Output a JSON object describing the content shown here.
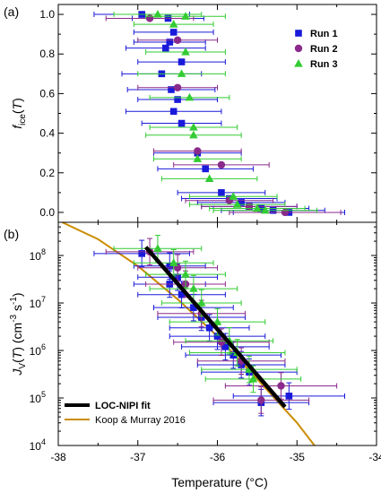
{
  "chart_data": {
    "type": "scatter",
    "xlabel": "Temperature (°C)",
    "xlim": [
      -38,
      -34
    ],
    "x_ticks": [
      -38,
      -37,
      -36,
      -35,
      -34
    ],
    "x_tick_labels": [
      "-38",
      "-37",
      "-36",
      "-35",
      "-34"
    ],
    "colors": {
      "run1": "#1a1adb",
      "run2": "#8b2a8b",
      "run3": "#33cc33",
      "fit": "#000000",
      "koop": "#cc8c00"
    },
    "panels": [
      {
        "panel_label": "(a)",
        "ylabel_main": "f",
        "ylabel_sub": "ice",
        "ylabel_tail": "(T)",
        "ylim": [
          -0.05,
          1.05
        ],
        "y_ticks": [
          0.0,
          0.2,
          0.4,
          0.6,
          0.8,
          1.0
        ],
        "y_tick_labels": [
          "0.0",
          "0.2",
          "0.4",
          "0.6",
          "0.8",
          "1.0"
        ],
        "legend": {
          "placement": "top-right",
          "entries": [
            "Run 1",
            "Run 2",
            "Run 3"
          ]
        },
        "series": [
          {
            "name": "Run 1",
            "marker": "square",
            "points": [
              {
                "x": -36.95,
                "y": 1.0,
                "xerr": 0.6
              },
              {
                "x": -36.62,
                "y": 0.98,
                "xerr": 0.45
              },
              {
                "x": -36.55,
                "y": 0.91,
                "xerr": 0.5
              },
              {
                "x": -36.6,
                "y": 0.86,
                "xerr": 0.45
              },
              {
                "x": -36.65,
                "y": 0.83,
                "xerr": 0.5
              },
              {
                "x": -36.45,
                "y": 0.76,
                "xerr": 0.55
              },
              {
                "x": -36.7,
                "y": 0.7,
                "xerr": 0.5
              },
              {
                "x": -36.58,
                "y": 0.62,
                "xerr": 0.55
              },
              {
                "x": -36.5,
                "y": 0.57,
                "xerr": 0.5
              },
              {
                "x": -36.55,
                "y": 0.51,
                "xerr": 0.6
              },
              {
                "x": -36.45,
                "y": 0.45,
                "xerr": 0.5
              },
              {
                "x": -36.25,
                "y": 0.3,
                "xerr": 0.55
              },
              {
                "x": -36.15,
                "y": 0.22,
                "xerr": 0.6
              },
              {
                "x": -35.95,
                "y": 0.1,
                "xerr": 0.55
              },
              {
                "x": -35.85,
                "y": 0.07,
                "xerr": 0.6
              },
              {
                "x": -35.7,
                "y": 0.05,
                "xerr": 0.55
              },
              {
                "x": -35.6,
                "y": 0.03,
                "xerr": 0.6
              },
              {
                "x": -35.45,
                "y": 0.02,
                "xerr": 0.6
              },
              {
                "x": -35.3,
                "y": 0.01,
                "xerr": 0.65
              },
              {
                "x": -35.1,
                "y": 0.0,
                "xerr": 0.7
              }
            ]
          },
          {
            "name": "Run 2",
            "marker": "circle",
            "points": [
              {
                "x": -36.85,
                "y": 0.98,
                "xerr": 0.55
              },
              {
                "x": -36.5,
                "y": 0.87,
                "xerr": 0.5
              },
              {
                "x": -36.5,
                "y": 0.63,
                "xerr": 0.5
              },
              {
                "x": -36.25,
                "y": 0.31,
                "xerr": 0.55
              },
              {
                "x": -35.95,
                "y": 0.24,
                "xerr": 0.6
              },
              {
                "x": -35.85,
                "y": 0.06,
                "xerr": 0.55
              },
              {
                "x": -35.6,
                "y": 0.03,
                "xerr": 0.6
              },
              {
                "x": -35.15,
                "y": 0.0,
                "xerr": 0.7
              }
            ]
          },
          {
            "name": "Run 3",
            "marker": "triangle",
            "points": [
              {
                "x": -36.75,
                "y": 1.0,
                "xerr": 0.55
              },
              {
                "x": -36.4,
                "y": 0.99,
                "xerr": 0.5
              },
              {
                "x": -36.55,
                "y": 0.95,
                "xerr": 0.5
              },
              {
                "x": -36.4,
                "y": 0.81,
                "xerr": 0.5
              },
              {
                "x": -36.45,
                "y": 0.7,
                "xerr": 0.55
              },
              {
                "x": -36.35,
                "y": 0.58,
                "xerr": 0.5
              },
              {
                "x": -36.3,
                "y": 0.43,
                "xerr": 0.55
              },
              {
                "x": -36.3,
                "y": 0.39,
                "xerr": 0.6
              },
              {
                "x": -36.25,
                "y": 0.27,
                "xerr": 0.55
              },
              {
                "x": -36.1,
                "y": 0.17,
                "xerr": 0.6
              },
              {
                "x": -35.8,
                "y": 0.08,
                "xerr": 0.55
              },
              {
                "x": -35.75,
                "y": 0.04,
                "xerr": 0.6
              },
              {
                "x": -35.5,
                "y": 0.02,
                "xerr": 0.6
              },
              {
                "x": -35.4,
                "y": 0.01,
                "xerr": 0.65
              }
            ]
          }
        ]
      },
      {
        "panel_label": "(b)",
        "ylabel_main": "J",
        "ylabel_sub": "V",
        "ylabel_tail": "(T) (cm",
        "ylabel_sup1": "-3",
        "ylabel_mid": " s",
        "ylabel_sup2": "-1",
        "ylabel_end": ")",
        "y_scale": "log",
        "ylim": [
          10000,
          500000000
        ],
        "y_ticks": [
          10000,
          100000,
          1000000,
          10000000,
          100000000
        ],
        "y_tick_base": "10",
        "y_tick_exps": [
          "4",
          "5",
          "6",
          "7",
          "8"
        ],
        "legend": {
          "placement": "bottom-left",
          "entries": [
            "LOC-NIPI fit",
            "Koop & Murray 2016"
          ]
        },
        "fit_line": {
          "name": "LOC-NIPI fit",
          "x": [
            -36.9,
            -35.15
          ],
          "y": [
            150000000,
            65000
          ]
        },
        "koop_curve": {
          "name": "Koop & Murray 2016",
          "x": [
            -37.95,
            -37.5,
            -37.0,
            -36.5,
            -36.0,
            -35.5,
            -35.0,
            -34.78
          ],
          "y": [
            500000000,
            220000000,
            60000000,
            12000000,
            2000000,
            250000,
            30000,
            10000
          ]
        },
        "series": [
          {
            "name": "Run 1",
            "marker": "square",
            "points": [
              {
                "x": -36.95,
                "y": 110000000,
                "xerr": 0.6
              },
              {
                "x": -36.6,
                "y": 60000000,
                "xerr": 0.45
              },
              {
                "x": -36.5,
                "y": 35000000,
                "xerr": 0.5
              },
              {
                "x": -36.6,
                "y": 25000000,
                "xerr": 0.45
              },
              {
                "x": -36.45,
                "y": 15000000,
                "xerr": 0.55
              },
              {
                "x": -36.3,
                "y": 8000000,
                "xerr": 0.5
              },
              {
                "x": -36.2,
                "y": 5000000,
                "xerr": 0.55
              },
              {
                "x": -36.1,
                "y": 3000000,
                "xerr": 0.5
              },
              {
                "x": -36.0,
                "y": 2000000,
                "xerr": 0.6
              },
              {
                "x": -35.9,
                "y": 1200000,
                "xerr": 0.55
              },
              {
                "x": -35.8,
                "y": 800000,
                "xerr": 0.6
              },
              {
                "x": -35.7,
                "y": 500000,
                "xerr": 0.55
              },
              {
                "x": -35.6,
                "y": 350000,
                "xerr": 0.6
              },
              {
                "x": -35.1,
                "y": 110000,
                "xerr": 0.7
              },
              {
                "x": -35.45,
                "y": 80000,
                "xerr": 0.6
              }
            ]
          },
          {
            "name": "Run 2",
            "marker": "circle",
            "points": [
              {
                "x": -36.85,
                "y": 120000000,
                "xerr": 0.55
              },
              {
                "x": -36.5,
                "y": 55000000,
                "xerr": 0.5
              },
              {
                "x": -36.4,
                "y": 25000000,
                "xerr": 0.5
              },
              {
                "x": -36.2,
                "y": 6000000,
                "xerr": 0.55
              },
              {
                "x": -35.95,
                "y": 1500000,
                "xerr": 0.6
              },
              {
                "x": -35.7,
                "y": 600000,
                "xerr": 0.55
              },
              {
                "x": -35.2,
                "y": 180000,
                "xerr": 0.7
              },
              {
                "x": -35.45,
                "y": 90000,
                "xerr": 0.6
              }
            ]
          },
          {
            "name": "Run 3",
            "marker": "triangle",
            "points": [
              {
                "x": -36.75,
                "y": 140000000,
                "xerr": 0.55
              },
              {
                "x": -36.55,
                "y": 70000000,
                "xerr": 0.5
              },
              {
                "x": -36.4,
                "y": 40000000,
                "xerr": 0.5
              },
              {
                "x": -36.3,
                "y": 20000000,
                "xerr": 0.55
              },
              {
                "x": -36.2,
                "y": 10000000,
                "xerr": 0.5
              },
              {
                "x": -36.0,
                "y": 4000000,
                "xerr": 0.6
              },
              {
                "x": -35.85,
                "y": 1600000,
                "xerr": 0.55
              },
              {
                "x": -35.75,
                "y": 900000,
                "xerr": 0.6
              },
              {
                "x": -35.6,
                "y": 400000,
                "xerr": 0.6
              },
              {
                "x": -35.55,
                "y": 250000,
                "xerr": 0.6
              }
            ]
          }
        ]
      }
    ]
  }
}
